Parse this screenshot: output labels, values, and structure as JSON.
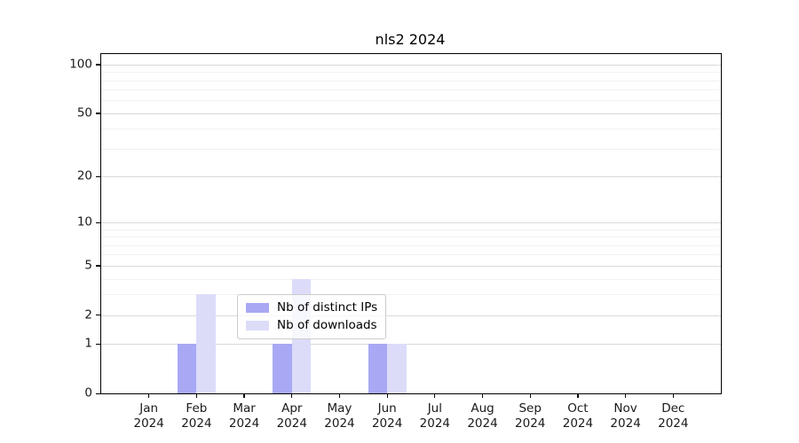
{
  "window": {
    "background_color": "#ffffff"
  },
  "chart_data": {
    "type": "bar",
    "title": "nls2 2024",
    "categories": [
      "Jan",
      "Feb",
      "Mar",
      "Apr",
      "May",
      "Jun",
      "Jul",
      "Aug",
      "Sep",
      "Oct",
      "Nov",
      "Dec"
    ],
    "x_tick_year": "2024",
    "series": [
      {
        "name": "Nb of distinct IPs",
        "color": "#a8a8f5",
        "values": [
          0,
          1,
          0,
          1,
          0,
          1,
          0,
          0,
          0,
          0,
          0,
          0
        ]
      },
      {
        "name": "Nb of downloads",
        "color": "#dcdcf9",
        "values": [
          0,
          3,
          0,
          4,
          0,
          1,
          0,
          0,
          0,
          0,
          0,
          0
        ]
      }
    ],
    "yscale": "log1p",
    "ylim": [
      0,
      116
    ],
    "y_major_ticks": [
      0,
      1,
      2,
      5,
      10,
      20,
      50,
      100
    ],
    "y_minor_gridlines": [
      3,
      4,
      6,
      7,
      8,
      9,
      30,
      40,
      60,
      70,
      80,
      90
    ],
    "grid": true,
    "legend_position": "inside lower-center",
    "style": {
      "major_grid_color": "#d9d9d9",
      "minor_grid_color": "#f2f2f2",
      "axis_color": "#000000",
      "text_color": "#1a1a1a",
      "legend_border_color": "#cccccc",
      "legend_background": "rgba(255,255,255,0.78)"
    }
  }
}
